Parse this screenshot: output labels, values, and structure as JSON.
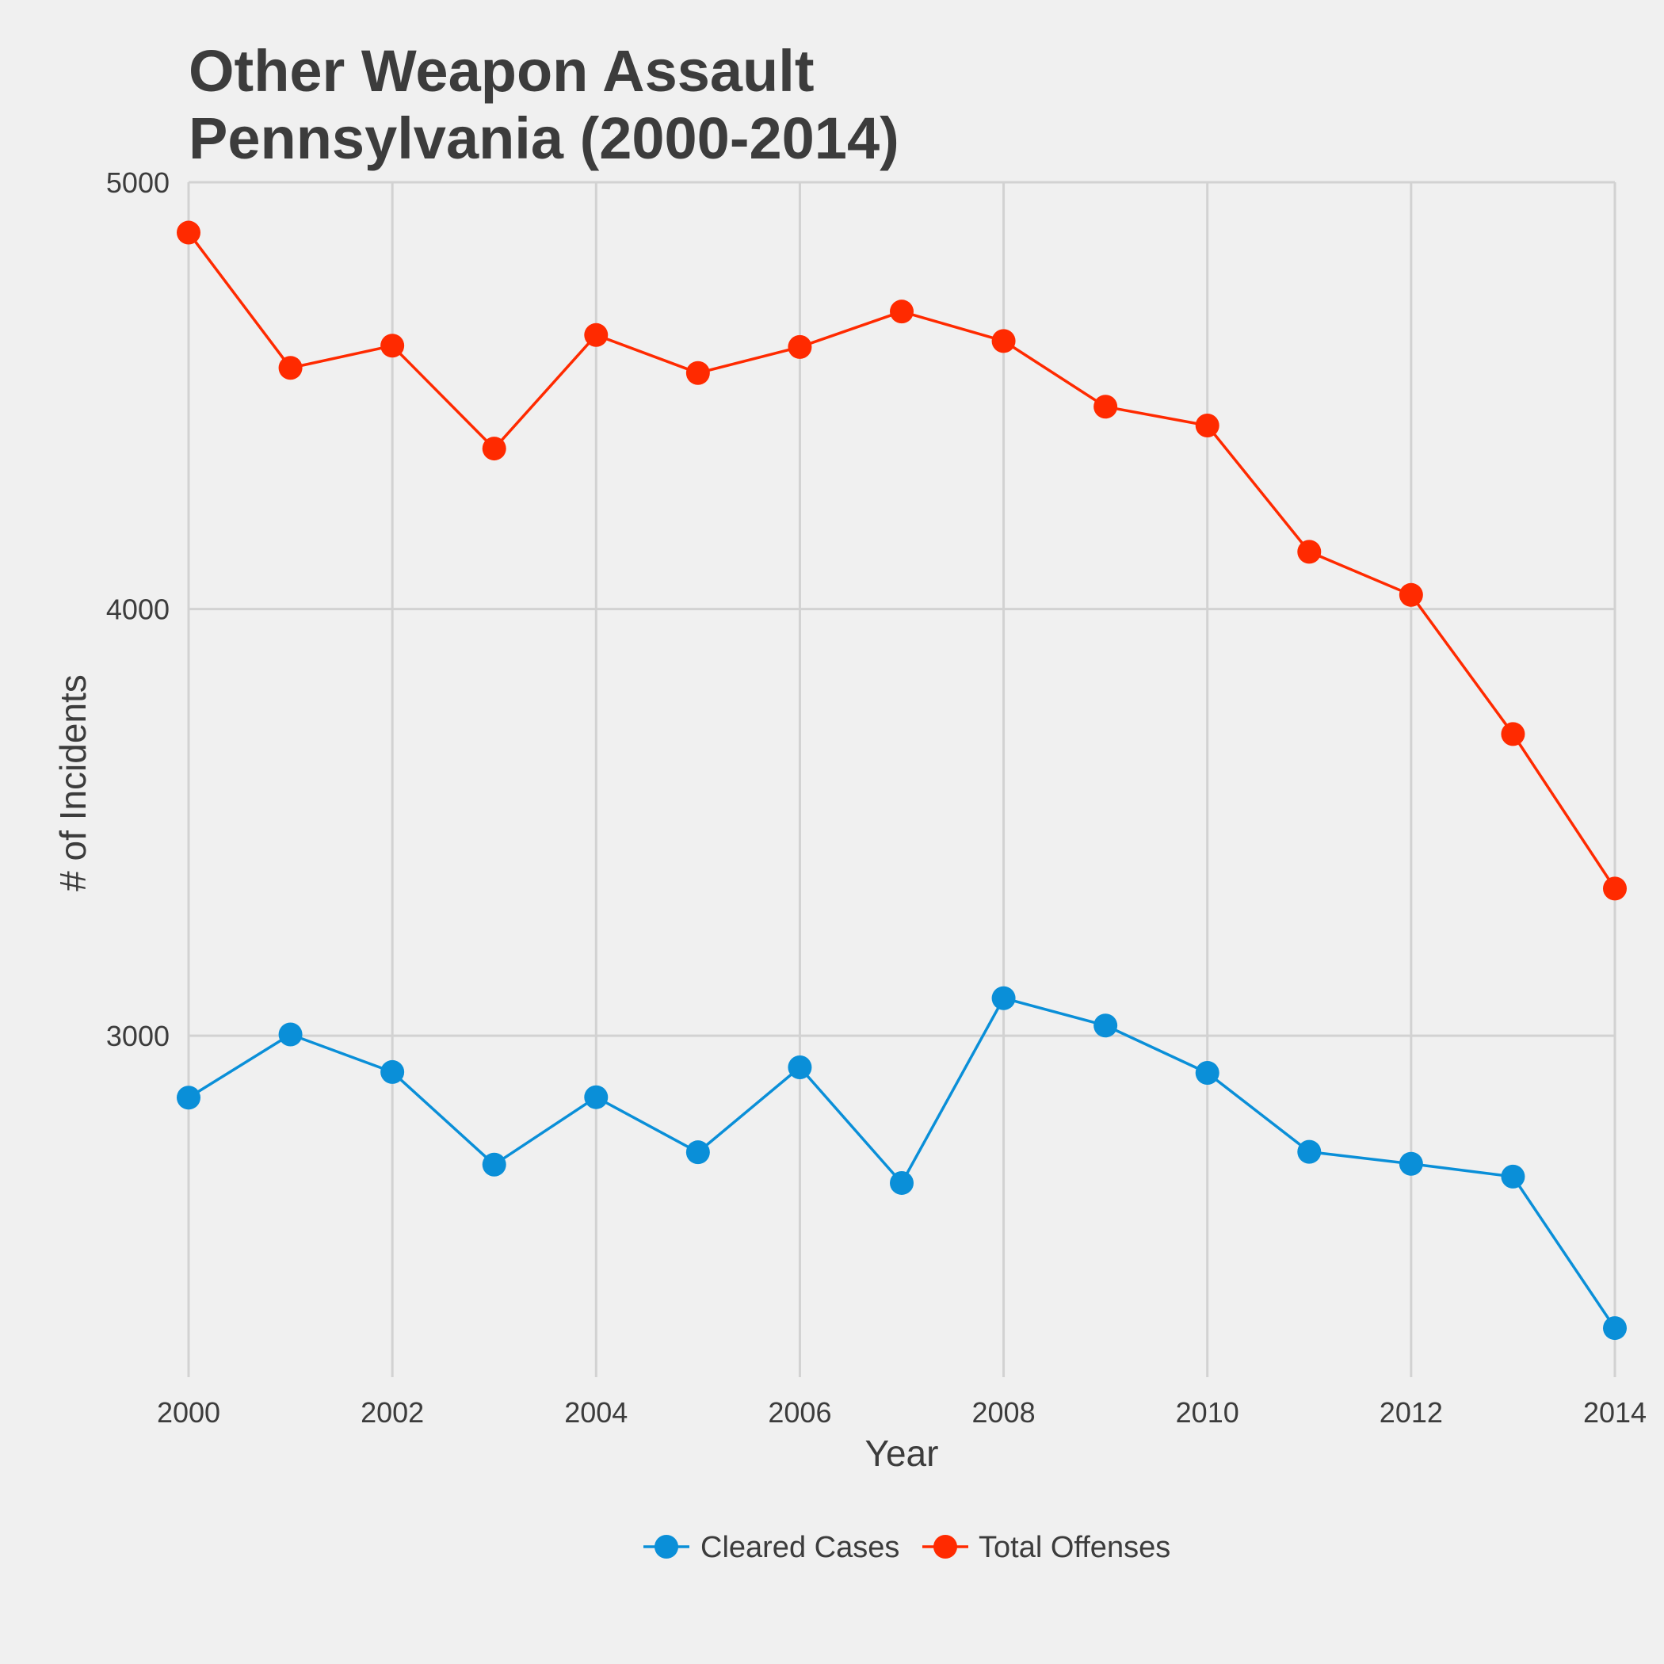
{
  "chart_data": {
    "type": "line",
    "title": [
      "Other Weapon Assault",
      "Pennsylvania (2000-2014)"
    ],
    "xlabel": "Year",
    "ylabel": "# of Incidents",
    "x": [
      2000,
      2001,
      2002,
      2003,
      2004,
      2005,
      2006,
      2007,
      2008,
      2009,
      2010,
      2011,
      2012,
      2013,
      2014
    ],
    "xlim": [
      2000,
      2014
    ],
    "ylim": [
      2200,
      5000
    ],
    "x_ticks": [
      2000,
      2002,
      2004,
      2006,
      2008,
      2010,
      2012,
      2014
    ],
    "y_ticks": [
      3000,
      4000,
      5000
    ],
    "grid": true,
    "legend_position": "bottom",
    "series": [
      {
        "name": "Cleared Cases",
        "color": "#0a8fd8",
        "values": [
          2855,
          3003,
          2915,
          2698,
          2856,
          2727,
          2926,
          2655,
          3088,
          3024,
          2913,
          2728,
          2700,
          2670,
          2315
        ]
      },
      {
        "name": "Total Offenses",
        "color": "#ff2a00",
        "values": [
          4882,
          4565,
          4617,
          4376,
          4642,
          4553,
          4614,
          4697,
          4628,
          4474,
          4430,
          4134,
          4033,
          3707,
          3345
        ]
      }
    ]
  }
}
